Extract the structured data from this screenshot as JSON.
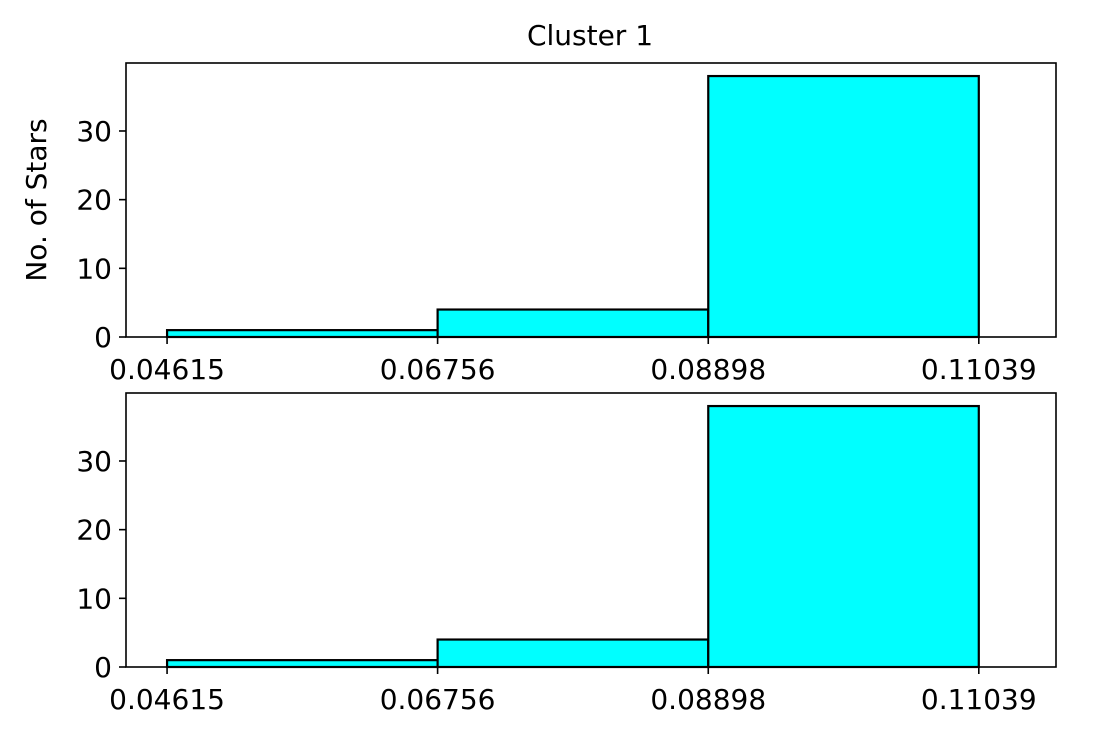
{
  "chart_data": [
    {
      "type": "bar",
      "title": "Cluster 1",
      "xlabel": "",
      "ylabel": "No. of Stars",
      "bin_edges": [
        0.04615,
        0.06756,
        0.08898,
        0.11039
      ],
      "values": [
        1,
        4,
        38
      ],
      "xticks": [
        "0.04615",
        "0.06756",
        "0.08898",
        "0.11039"
      ],
      "yticks": [
        0,
        10,
        20,
        30
      ],
      "xlim": [
        0.0429,
        0.1165
      ],
      "ylim": [
        0,
        39.9
      ],
      "bar_color": "#00ffff",
      "edge_color": "#000000",
      "grid": false
    },
    {
      "type": "bar",
      "title": "",
      "xlabel": "",
      "ylabel": "",
      "bin_edges": [
        0.04615,
        0.06756,
        0.08898,
        0.11039
      ],
      "values": [
        1,
        4,
        38
      ],
      "xticks": [
        "0.04615",
        "0.06756",
        "0.08898",
        "0.11039"
      ],
      "yticks": [
        0,
        10,
        20,
        30
      ],
      "xlim": [
        0.0429,
        0.1165
      ],
      "ylim": [
        0,
        39.9
      ],
      "bar_color": "#00ffff",
      "edge_color": "#000000",
      "grid": false
    }
  ]
}
